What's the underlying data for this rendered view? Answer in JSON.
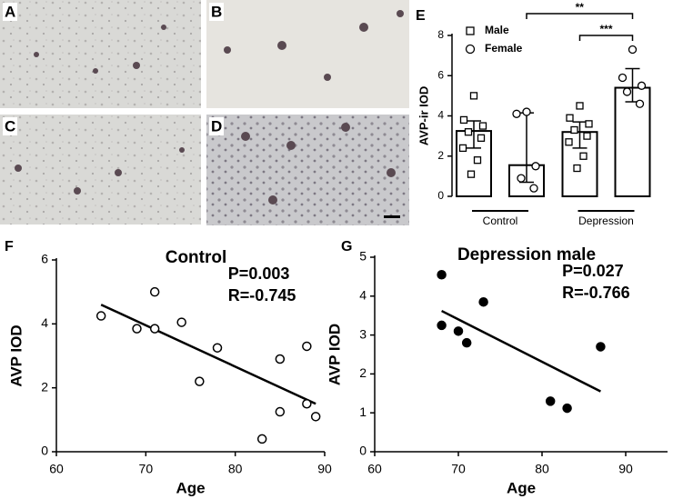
{
  "micrographs": {
    "labels": [
      "A",
      "B",
      "C",
      "D"
    ]
  },
  "chart_data": [
    {
      "type": "bar",
      "panel": "E",
      "y_label": "AVP-ir IOD",
      "categories": [
        "Control",
        "Depression"
      ],
      "ylim": [
        0,
        8
      ],
      "yticks": [
        0,
        2,
        4,
        6,
        8
      ],
      "series": [
        {
          "name": "Male",
          "marker": "square",
          "color": "#000000",
          "values": [
            3.25,
            3.2
          ],
          "error_lower": [
            2.4,
            2.4
          ],
          "error_upper": [
            3.75,
            3.7
          ],
          "points": [
            [
              5.0,
              3.8,
              3.5,
              3.2,
              2.9,
              2.4,
              1.8,
              1.1
            ],
            [
              4.5,
              3.9,
              3.6,
              3.3,
              3.0,
              2.7,
              2.0,
              1.4
            ]
          ]
        },
        {
          "name": "Female",
          "marker": "circle",
          "color": "#000000",
          "values": [
            1.55,
            5.4
          ],
          "error_lower": [
            0.7,
            4.7
          ],
          "error_upper": [
            4.15,
            6.35
          ],
          "points": [
            [
              4.2,
              4.1,
              1.5,
              0.9,
              0.4
            ],
            [
              7.3,
              5.9,
              5.5,
              5.2,
              4.6
            ]
          ]
        }
      ],
      "annotations": [
        {
          "text": "**"
        },
        {
          "text": "***"
        }
      ]
    },
    {
      "type": "scatter",
      "panel": "F",
      "title": "Control",
      "x_label": "Age",
      "y_label": "AVP IOD",
      "stats": [
        "P=0.003",
        "R=-0.745"
      ],
      "xlim": [
        60,
        90
      ],
      "xticks": [
        60,
        70,
        80,
        90
      ],
      "ylim": [
        0,
        6
      ],
      "yticks": [
        0,
        2,
        4,
        6
      ],
      "marker_fill": "#ffffff",
      "color": "#000000",
      "x": [
        65,
        69,
        71,
        71,
        74,
        76,
        78,
        83,
        85,
        85,
        88,
        88,
        89
      ],
      "values": [
        4.25,
        3.85,
        5.0,
        3.85,
        4.05,
        2.2,
        3.25,
        0.4,
        2.9,
        1.25,
        3.3,
        1.5,
        1.1
      ],
      "fit": {
        "x": [
          65,
          89
        ],
        "y": [
          4.6,
          1.5
        ]
      }
    },
    {
      "type": "scatter",
      "panel": "G",
      "title": "Depression male",
      "x_label": "Age",
      "y_label": "AVP IOD",
      "stats": [
        "P=0.027",
        "R=-0.766"
      ],
      "xlim": [
        60,
        95
      ],
      "xticks": [
        60,
        70,
        80,
        90
      ],
      "ylim": [
        0,
        5
      ],
      "yticks": [
        0,
        1,
        2,
        3,
        4,
        5
      ],
      "marker_fill": "#000000",
      "color": "#000000",
      "x": [
        68,
        68,
        70,
        71,
        73,
        81,
        83,
        87
      ],
      "values": [
        4.55,
        3.25,
        3.1,
        2.8,
        3.85,
        1.3,
        1.12,
        2.7
      ],
      "fit": {
        "x": [
          68,
          87
        ],
        "y": [
          3.62,
          1.55
        ]
      }
    }
  ]
}
